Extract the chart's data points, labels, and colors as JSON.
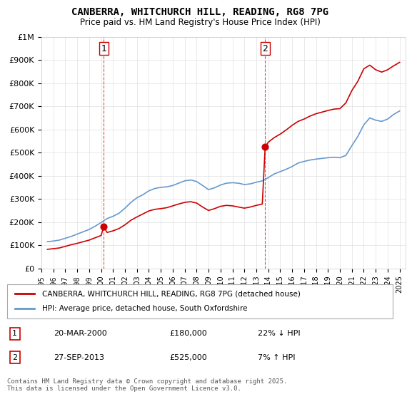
{
  "title": "CANBERRA, WHITCHURCH HILL, READING, RG8 7PG",
  "subtitle": "Price paid vs. HM Land Registry's House Price Index (HPI)",
  "ylim": [
    0,
    1000000
  ],
  "xlim_start": 1995.0,
  "xlim_end": 2025.5,
  "background_color": "#ffffff",
  "grid_color": "#e0e0e0",
  "line1_color": "#cc0000",
  "line2_color": "#6699cc",
  "transaction1": {
    "date_num": 2000.22,
    "price": 180000,
    "label": "1"
  },
  "transaction2": {
    "date_num": 2013.74,
    "price": 525000,
    "label": "2"
  },
  "annotation_rows": [
    {
      "num": "1",
      "date": "20-MAR-2000",
      "price": "£180,000",
      "hpi_change": "22% ↓ HPI"
    },
    {
      "num": "2",
      "date": "27-SEP-2013",
      "price": "£525,000",
      "hpi_change": "7% ↑ HPI"
    }
  ],
  "legend_line1": "CANBERRA, WHITCHURCH HILL, READING, RG8 7PG (detached house)",
  "legend_line2": "HPI: Average price, detached house, South Oxfordshire",
  "footer": "Contains HM Land Registry data © Crown copyright and database right 2025.\nThis data is licensed under the Open Government Licence v3.0.",
  "hpi_data": {
    "years": [
      1995.5,
      1996.0,
      1996.5,
      1997.0,
      1997.5,
      1998.0,
      1998.5,
      1999.0,
      1999.5,
      2000.0,
      2000.5,
      2001.0,
      2001.5,
      2002.0,
      2002.5,
      2003.0,
      2003.5,
      2004.0,
      2004.5,
      2005.0,
      2005.5,
      2006.0,
      2006.5,
      2007.0,
      2007.5,
      2008.0,
      2008.5,
      2009.0,
      2009.5,
      2010.0,
      2010.5,
      2011.0,
      2011.5,
      2012.0,
      2012.5,
      2013.0,
      2013.5,
      2014.0,
      2014.5,
      2015.0,
      2015.5,
      2016.0,
      2016.5,
      2017.0,
      2017.5,
      2018.0,
      2018.5,
      2019.0,
      2019.5,
      2020.0,
      2020.5,
      2021.0,
      2021.5,
      2022.0,
      2022.5,
      2023.0,
      2023.5,
      2024.0,
      2024.5,
      2025.0
    ],
    "values": [
      115000,
      118000,
      122000,
      130000,
      138000,
      148000,
      158000,
      168000,
      182000,
      198000,
      215000,
      225000,
      238000,
      260000,
      285000,
      305000,
      318000,
      335000,
      345000,
      350000,
      352000,
      358000,
      368000,
      378000,
      382000,
      375000,
      358000,
      340000,
      348000,
      360000,
      368000,
      370000,
      368000,
      362000,
      365000,
      372000,
      378000,
      392000,
      408000,
      418000,
      428000,
      440000,
      455000,
      462000,
      468000,
      472000,
      475000,
      478000,
      480000,
      478000,
      488000,
      530000,
      570000,
      620000,
      650000,
      640000,
      635000,
      645000,
      665000,
      680000
    ]
  },
  "price_data": {
    "years": [
      1995.5,
      1996.0,
      1996.5,
      1997.0,
      1997.5,
      1998.0,
      1998.5,
      1999.0,
      1999.5,
      2000.0,
      2000.22,
      2000.5,
      2001.0,
      2001.5,
      2002.0,
      2002.5,
      2003.0,
      2003.5,
      2004.0,
      2004.5,
      2005.0,
      2005.5,
      2006.0,
      2006.5,
      2007.0,
      2007.5,
      2008.0,
      2008.5,
      2009.0,
      2009.5,
      2010.0,
      2010.5,
      2011.0,
      2011.5,
      2012.0,
      2012.5,
      2013.0,
      2013.5,
      2013.74,
      2014.0,
      2014.5,
      2015.0,
      2015.5,
      2016.0,
      2016.5,
      2017.0,
      2017.5,
      2018.0,
      2018.5,
      2019.0,
      2019.5,
      2020.0,
      2020.5,
      2021.0,
      2021.5,
      2022.0,
      2022.5,
      2023.0,
      2023.5,
      2024.0,
      2024.5,
      2025.0
    ],
    "values": [
      82000,
      85000,
      88000,
      95000,
      102000,
      108000,
      115000,
      122000,
      132000,
      142000,
      180000,
      155000,
      162000,
      172000,
      188000,
      208000,
      222000,
      235000,
      248000,
      255000,
      258000,
      262000,
      270000,
      278000,
      285000,
      288000,
      282000,
      265000,
      250000,
      258000,
      268000,
      272000,
      270000,
      265000,
      260000,
      265000,
      272000,
      278000,
      525000,
      545000,
      565000,
      580000,
      598000,
      618000,
      635000,
      645000,
      658000,
      668000,
      675000,
      682000,
      688000,
      690000,
      715000,
      768000,
      808000,
      862000,
      878000,
      858000,
      848000,
      858000,
      875000,
      890000
    ]
  }
}
